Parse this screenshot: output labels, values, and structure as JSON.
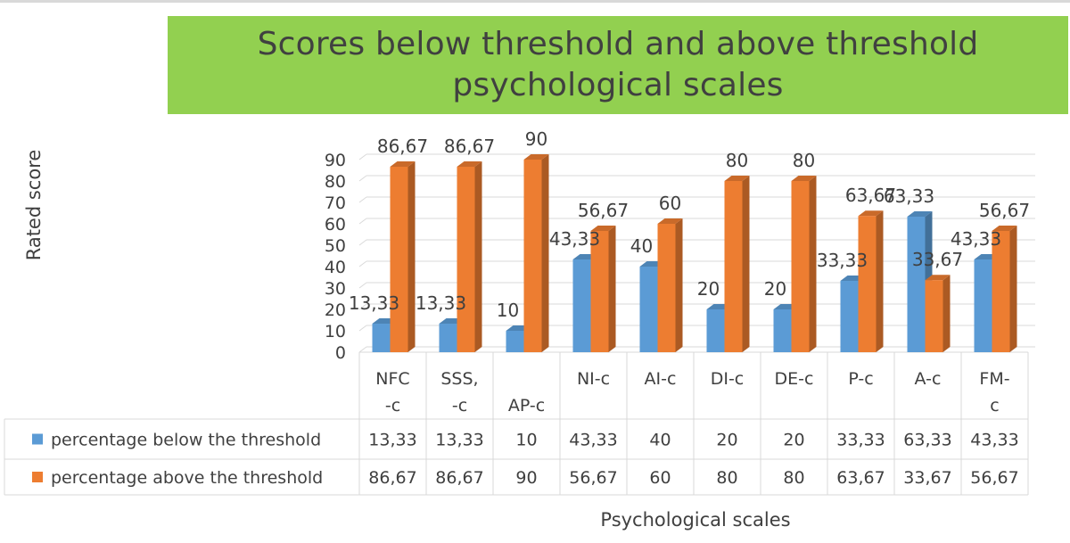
{
  "chart_data": {
    "type": "bar",
    "title": "Scores below threshold and above threshold psychological scales",
    "xlabel": "Psychological scales",
    "ylabel": "Rated score",
    "categories": [
      "NFC -c",
      "SSS, -c",
      "AP-c",
      "NI-c",
      "AI-c",
      "DI-c",
      "DE-c",
      "P-c",
      "A-c",
      "FM- c"
    ],
    "category_lines": [
      [
        "NFC",
        "-c"
      ],
      [
        "SSS,",
        "-c"
      ],
      [
        "",
        "AP-c"
      ],
      [
        "NI-c"
      ],
      [
        "AI-c"
      ],
      [
        "DI-c"
      ],
      [
        "DE-c"
      ],
      [
        "P-c"
      ],
      [
        "A-c"
      ],
      [
        "FM-",
        "c"
      ]
    ],
    "series": [
      {
        "name": "percentage below the threshold",
        "color": "#5b9bd5",
        "values": [
          13.33,
          13.33,
          10,
          43.33,
          40,
          20,
          20,
          33.33,
          63.33,
          43.33
        ],
        "labels": [
          "13,33",
          "13,33",
          "10",
          "43,33",
          "40",
          "20",
          "20",
          "33,33",
          "63,33",
          "43,33"
        ]
      },
      {
        "name": "percentage above the threshold",
        "color": "#ed7d31",
        "values": [
          86.67,
          86.67,
          90,
          56.67,
          60,
          80,
          80,
          63.67,
          33.67,
          56.67
        ],
        "labels": [
          "86,67",
          "86,67",
          "90",
          "56,67",
          "60",
          "80",
          "80",
          "63,67",
          "33,67",
          "56,67"
        ]
      }
    ],
    "ylim": [
      0,
      90
    ],
    "yticks": [
      "0",
      "10",
      "20",
      "30",
      "40",
      "50",
      "60",
      "70",
      "80",
      "90"
    ],
    "grid": true,
    "legend": "data-table",
    "style": "3d-clustered-column"
  }
}
